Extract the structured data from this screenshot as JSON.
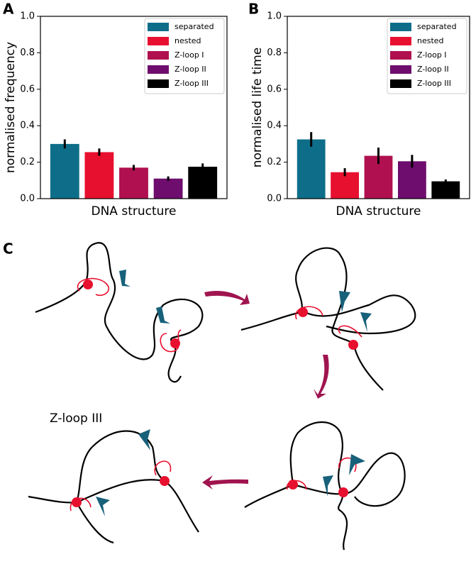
{
  "panels": [
    "A",
    "B",
    "C"
  ],
  "chart_data": [
    {
      "type": "bar",
      "ylabel": "normalised frequency",
      "xlabel": "DNA structure",
      "ylim": [
        0,
        1
      ],
      "yticks": [
        {
          "value": 0,
          "label": "0.0"
        },
        0.2,
        0.4,
        0.6,
        0.8,
        {
          "value": 1,
          "label": "1.0"
        }
      ],
      "series": [
        {
          "name": "separated",
          "color": "#0e6e8a",
          "values": [
            0.3
          ],
          "errors": [
            0.025
          ]
        },
        {
          "name": "nested",
          "color": "#e8102f",
          "values": [
            0.255
          ],
          "errors": [
            0.02
          ]
        },
        {
          "name": "Z-loop I",
          "color": "#b0104f",
          "values": [
            0.17
          ],
          "errors": [
            0.015
          ]
        },
        {
          "name": "Z-loop II",
          "color": "#6e0d6e",
          "values": [
            0.11
          ],
          "errors": [
            0.012
          ]
        },
        {
          "name": "Z-loop III",
          "color": "#000000",
          "values": [
            0.175
          ],
          "errors": [
            0.018
          ]
        }
      ],
      "legend": "upper right"
    },
    {
      "type": "bar",
      "ylabel": "normalised life time",
      "xlabel": "DNA structure",
      "ylim": [
        0,
        1
      ],
      "yticks": [
        {
          "value": 0,
          "label": "0.0"
        },
        0.2,
        0.4,
        0.6,
        0.8,
        {
          "value": 1,
          "label": "1.0"
        }
      ],
      "series": [
        {
          "name": "separated",
          "color": "#0e6e8a",
          "values": [
            0.325
          ],
          "errors": [
            0.04
          ]
        },
        {
          "name": "nested",
          "color": "#e8102f",
          "values": [
            0.145
          ],
          "errors": [
            0.022
          ]
        },
        {
          "name": "Z-loop I",
          "color": "#b0104f",
          "values": [
            0.235
          ],
          "errors": [
            0.045
          ]
        },
        {
          "name": "Z-loop II",
          "color": "#6e0d6e",
          "values": [
            0.205
          ],
          "errors": [
            0.035
          ]
        },
        {
          "name": "Z-loop III",
          "color": "#000000",
          "values": [
            0.095
          ],
          "errors": [
            0.01
          ]
        }
      ],
      "legend": "upper right"
    }
  ],
  "diagram": {
    "label": "Z-loop III"
  }
}
